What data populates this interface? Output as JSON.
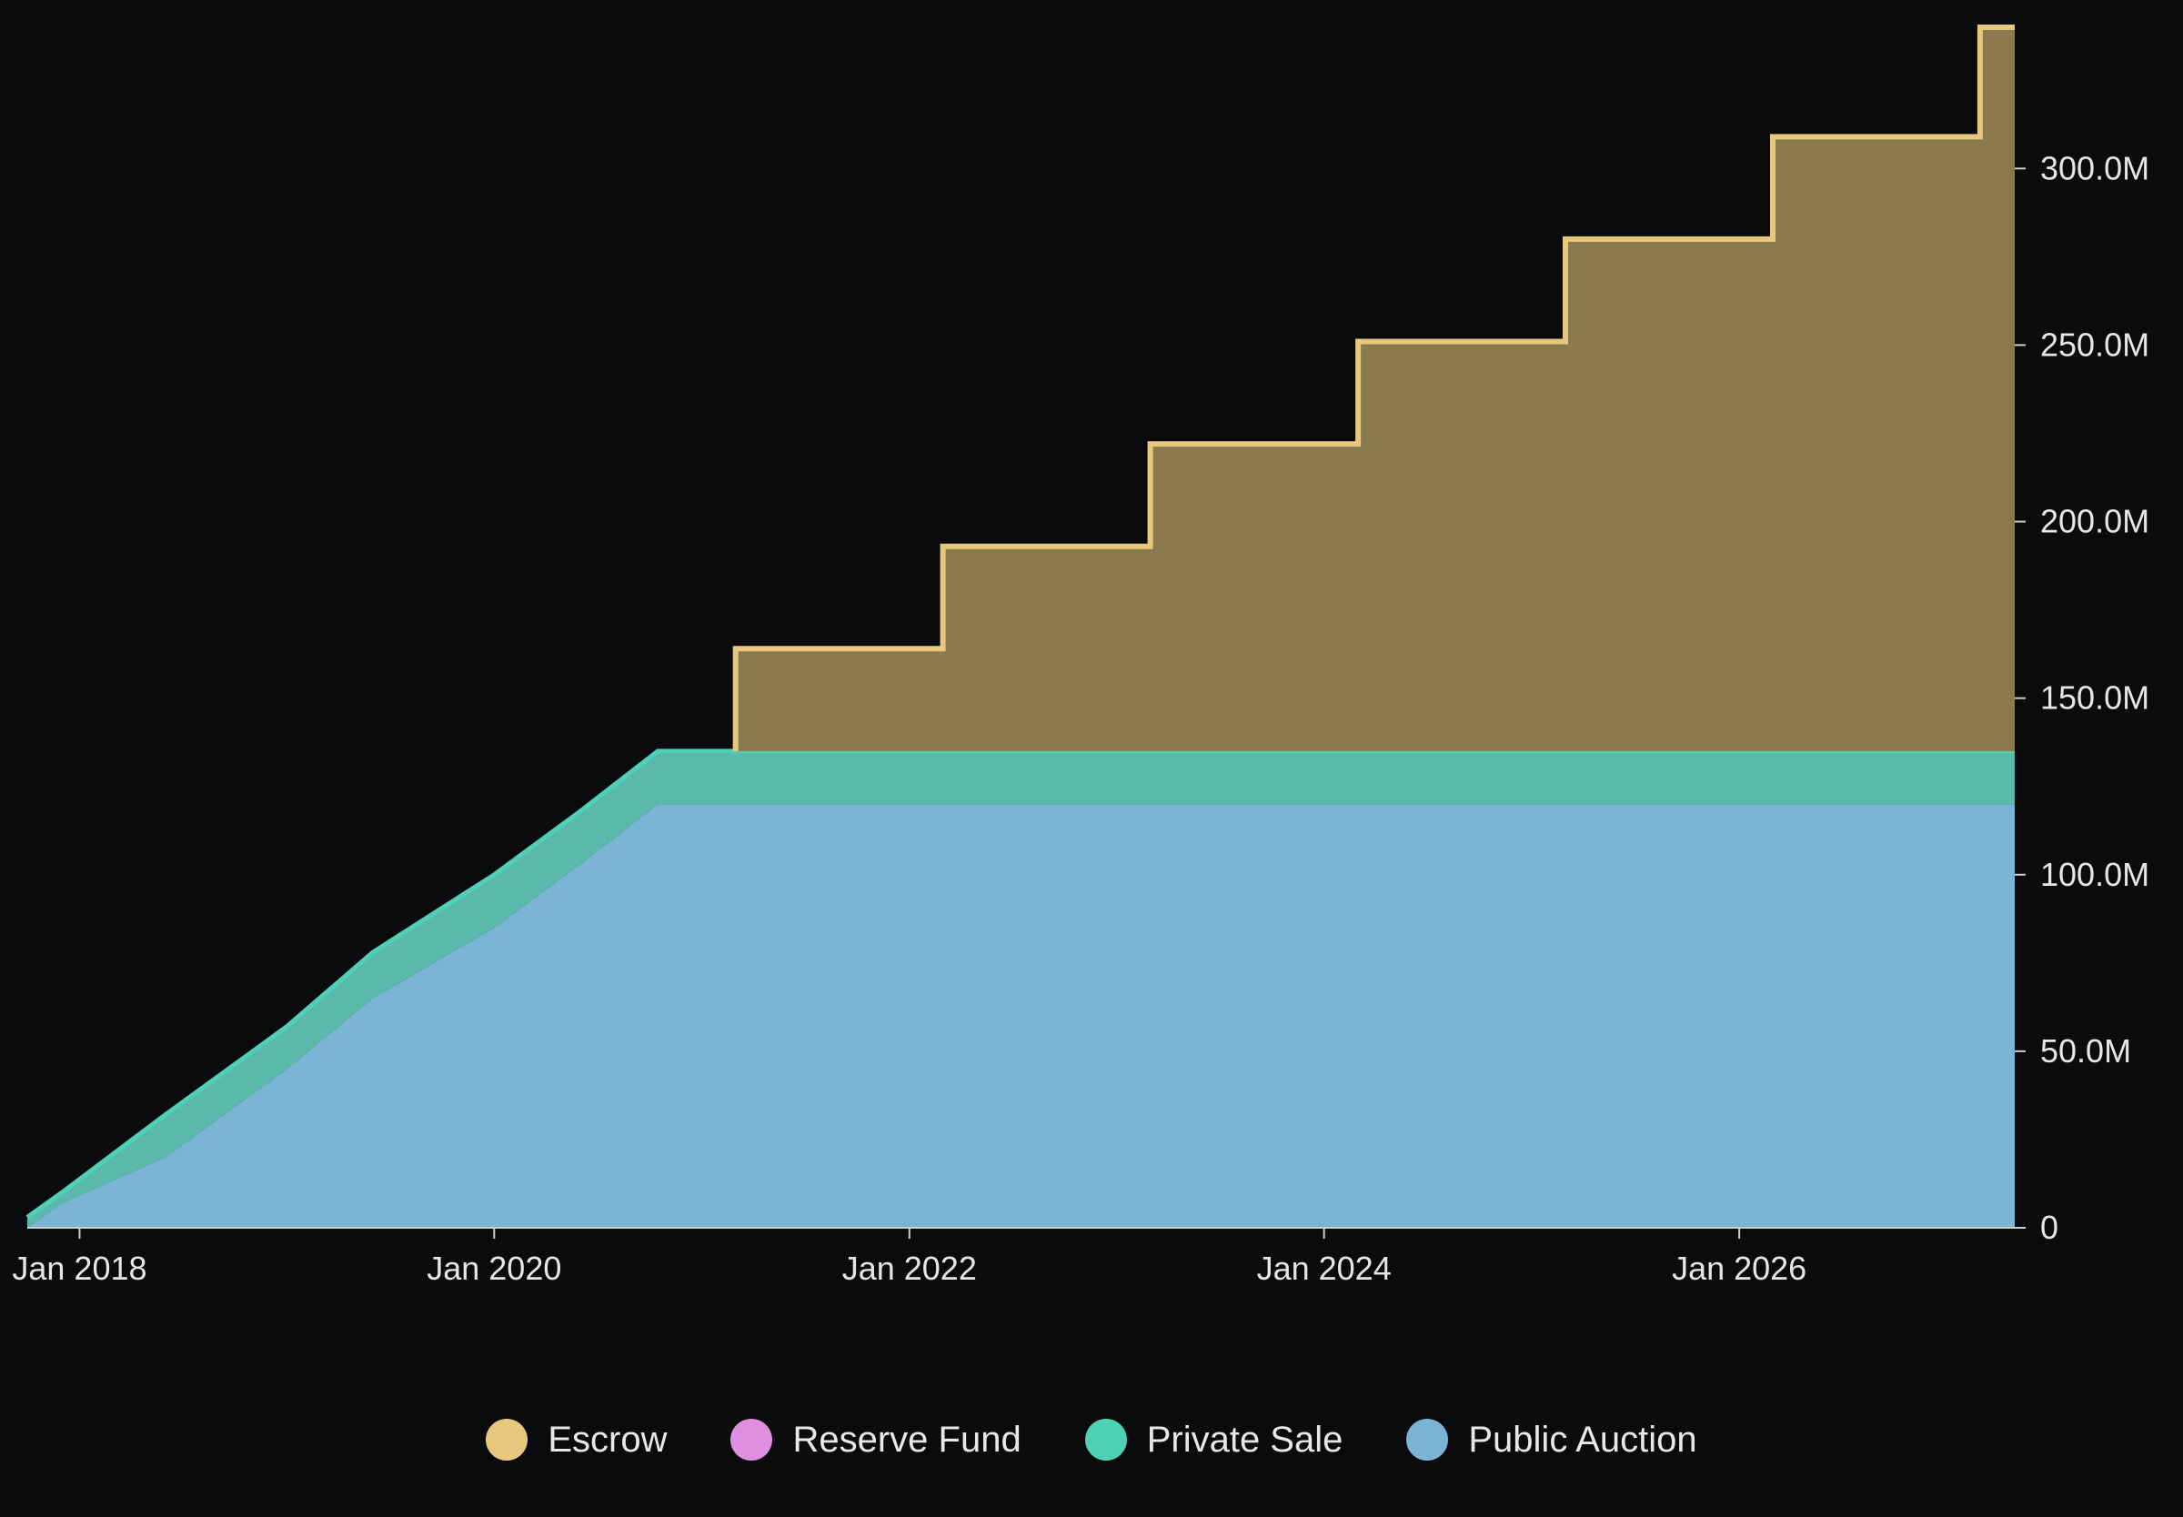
{
  "chart_data": {
    "type": "area",
    "stacked": true,
    "step": true,
    "title": "",
    "xlabel": "",
    "ylabel": "",
    "x_range": [
      "2017-10-01",
      "2027-05-01"
    ],
    "ylim": [
      0,
      340000000
    ],
    "x_ticks": [
      {
        "date": "2018-01-01",
        "label": "Jan 2018"
      },
      {
        "date": "2020-01-01",
        "label": "Jan 2020"
      },
      {
        "date": "2022-01-01",
        "label": "Jan 2022"
      },
      {
        "date": "2024-01-01",
        "label": "Jan 2024"
      },
      {
        "date": "2026-01-01",
        "label": "Jan 2026"
      }
    ],
    "y_ticks": [
      {
        "value": 0,
        "label": "0"
      },
      {
        "value": 50000000,
        "label": "50.0M"
      },
      {
        "value": 100000000,
        "label": "100.0M"
      },
      {
        "value": 150000000,
        "label": "150.0M"
      },
      {
        "value": 200000000,
        "label": "200.0M"
      },
      {
        "value": 250000000,
        "label": "250.0M"
      },
      {
        "value": 300000000,
        "label": "300.0M"
      }
    ],
    "y_axis_position": "right",
    "grid": false,
    "legend_position": "bottom-center",
    "stack_order": [
      "Public Auction",
      "Private Sale",
      "Reserve Fund",
      "Escrow"
    ],
    "series": [
      {
        "name": "Public Auction",
        "color": "#7ab5d6",
        "points": [
          [
            "2017-10-01",
            0
          ],
          [
            "2017-12-01",
            7000000
          ],
          [
            "2018-06-01",
            20000000
          ],
          [
            "2019-01-01",
            45000000
          ],
          [
            "2019-06-01",
            65000000
          ],
          [
            "2020-01-01",
            85000000
          ],
          [
            "2020-06-01",
            103000000
          ],
          [
            "2020-10-15",
            120000000
          ],
          [
            "2027-05-01",
            120000000
          ]
        ]
      },
      {
        "name": "Private Sale",
        "color": "#4fd1b5",
        "points": [
          [
            "2017-10-01",
            3000000
          ],
          [
            "2017-12-01",
            3000000
          ],
          [
            "2018-06-01",
            12000000
          ],
          [
            "2019-01-01",
            12000000
          ],
          [
            "2019-06-01",
            13000000
          ],
          [
            "2020-01-01",
            15000000
          ],
          [
            "2020-06-01",
            15000000
          ],
          [
            "2020-10-15",
            15000000
          ],
          [
            "2027-05-01",
            15000000
          ]
        ]
      },
      {
        "name": "Reserve Fund",
        "color": "#de8fe0",
        "points": [
          [
            "2017-10-01",
            0
          ],
          [
            "2027-05-01",
            0
          ]
        ]
      },
      {
        "name": "Escrow",
        "color": "#e8c77e",
        "points": [
          [
            "2017-10-01",
            0
          ],
          [
            "2021-03-01",
            0
          ],
          [
            "2021-03-01",
            29000000
          ],
          [
            "2022-03-01",
            29000000
          ],
          [
            "2022-03-01",
            58000000
          ],
          [
            "2023-03-01",
            58000000
          ],
          [
            "2023-03-01",
            87000000
          ],
          [
            "2024-03-01",
            87000000
          ],
          [
            "2024-03-01",
            116000000
          ],
          [
            "2025-03-01",
            116000000
          ],
          [
            "2025-03-01",
            145000000
          ],
          [
            "2026-03-01",
            145000000
          ],
          [
            "2026-03-01",
            174000000
          ],
          [
            "2027-03-01",
            174000000
          ],
          [
            "2027-03-01",
            205000000
          ]
        ]
      }
    ]
  },
  "legend": {
    "items": [
      {
        "label": "Escrow",
        "color": "#e8c77e"
      },
      {
        "label": "Reserve Fund",
        "color": "#de8fe0"
      },
      {
        "label": "Private Sale",
        "color": "#4fd1b5"
      },
      {
        "label": "Public Auction",
        "color": "#7ab5d6"
      }
    ]
  }
}
